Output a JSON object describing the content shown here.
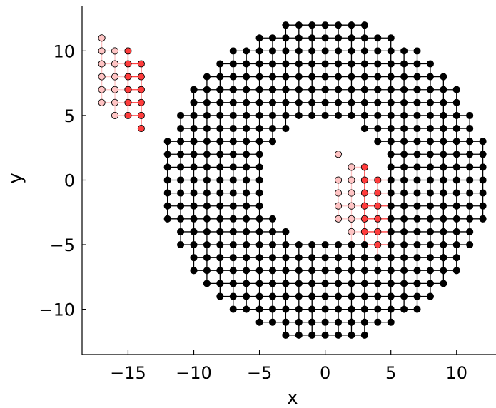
{
  "chart_data": {
    "type": "scatter",
    "title": "",
    "xlabel": "x",
    "ylabel": "y",
    "xlim": [
      -18.5,
      13
    ],
    "ylim": [
      -13.5,
      13.5
    ],
    "grid": false,
    "legend": null,
    "x_ticks": [
      {
        "value": -15,
        "label": "−15"
      },
      {
        "value": -10,
        "label": "−10"
      },
      {
        "value": -5,
        "label": "−5"
      },
      {
        "value": 0,
        "label": "0"
      },
      {
        "value": 5,
        "label": "5"
      },
      {
        "value": 10,
        "label": "10"
      }
    ],
    "y_ticks": [
      {
        "value": 10,
        "label": "10"
      },
      {
        "value": 5,
        "label": "5"
      },
      {
        "value": 0,
        "label": "0"
      },
      {
        "value": -5,
        "label": "−5"
      },
      {
        "value": -10,
        "label": "−10"
      }
    ],
    "lattice": {
      "shape": "annulus",
      "center": [
        0,
        0
      ],
      "inner_radius": 4.5,
      "outer_radius": 12.5,
      "bond_color": "#000000",
      "site_color": "#000000"
    },
    "series": [
      {
        "color": "#ffc4c4",
        "points": [
          [
            -17,
            11
          ],
          [
            -17,
            10
          ],
          [
            -17,
            9
          ],
          [
            -17,
            8
          ],
          [
            -17,
            7
          ],
          [
            -17,
            6
          ],
          [
            -16,
            10
          ],
          [
            -16,
            9
          ],
          [
            -16,
            8
          ],
          [
            -16,
            7
          ],
          [
            -16,
            6
          ],
          [
            -16,
            5
          ],
          [
            1,
            2
          ],
          [
            1,
            0
          ],
          [
            1,
            -1
          ],
          [
            1,
            -2
          ],
          [
            1,
            -3
          ],
          [
            2,
            1
          ],
          [
            2,
            0
          ],
          [
            2,
            -1
          ],
          [
            2,
            -2
          ],
          [
            2,
            -3
          ],
          [
            2,
            -4
          ]
        ]
      },
      {
        "color": "#ff3c3c",
        "points": [
          [
            -15,
            10
          ],
          [
            -15,
            9
          ],
          [
            -15,
            8
          ],
          [
            -15,
            7
          ],
          [
            -15,
            6
          ],
          [
            -15,
            5
          ],
          [
            -14,
            9
          ],
          [
            -14,
            8
          ],
          [
            -14,
            7
          ],
          [
            -14,
            6
          ],
          [
            -14,
            5
          ],
          [
            -14,
            4
          ],
          [
            3,
            1
          ],
          [
            3,
            0
          ],
          [
            3,
            -1
          ],
          [
            3,
            -2
          ],
          [
            3,
            -3
          ],
          [
            3,
            -4
          ],
          [
            4,
            0
          ],
          [
            4,
            -1
          ],
          [
            4,
            -2
          ],
          [
            4,
            -3
          ],
          [
            4,
            -4
          ],
          [
            4,
            -5
          ]
        ]
      }
    ]
  }
}
